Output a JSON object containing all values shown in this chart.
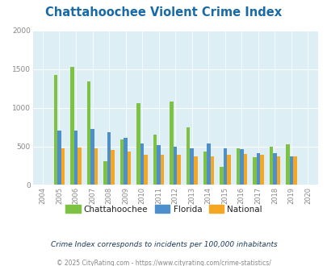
{
  "title": "Chattahoochee Violent Crime Index",
  "subtitle": "Crime Index corresponds to incidents per 100,000 inhabitants",
  "footer": "© 2025 CityRating.com - https://www.cityrating.com/crime-statistics/",
  "years": [
    "2004",
    "2005",
    "2006",
    "2007",
    "2008",
    "2009",
    "2010",
    "2011",
    "2012",
    "2013",
    "2014",
    "2015",
    "2016",
    "2017",
    "2018",
    "2019",
    "2020"
  ],
  "chattahoochee": [
    0,
    1420,
    1530,
    1340,
    310,
    590,
    1060,
    650,
    1080,
    750,
    430,
    230,
    470,
    360,
    500,
    530,
    0
  ],
  "florida": [
    0,
    700,
    700,
    720,
    680,
    610,
    535,
    520,
    490,
    470,
    540,
    470,
    460,
    410,
    410,
    370,
    0
  ],
  "national": [
    0,
    470,
    480,
    470,
    450,
    430,
    390,
    390,
    390,
    370,
    370,
    390,
    400,
    390,
    370,
    370,
    0
  ],
  "color_chattahoochee": "#7dc242",
  "color_florida": "#4d8fcc",
  "color_national": "#f5a623",
  "background_color": "#ddeef5",
  "ylim": [
    0,
    2000
  ],
  "yticks": [
    0,
    500,
    1000,
    1500,
    2000
  ],
  "title_color": "#1a6aa5",
  "tick_color": "#888888",
  "subtitle_color": "#1a3a5c",
  "footer_color": "#888888",
  "footer_link_color": "#4d8fcc"
}
